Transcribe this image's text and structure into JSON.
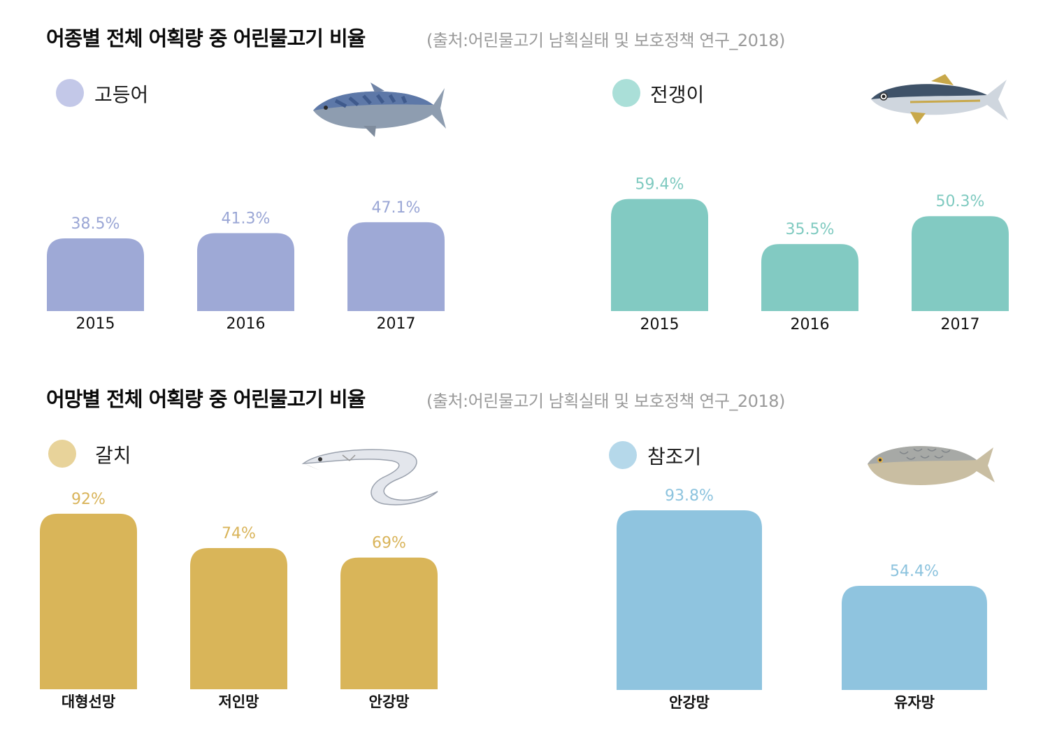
{
  "sections": [
    {
      "title": "어종별 전체 어획량 중 어린물고기 비율",
      "source": "(출처:어린물고기 남획실태 및 보호정책 연구_2018)"
    },
    {
      "title": "어망별 전체 어획량 중 어린물고기 비율",
      "source": "(출처:어린물고기 남획실태 및 보호정책 연구_2018)"
    }
  ],
  "chart_data": [
    {
      "type": "bar",
      "title": "고등어",
      "icon": "mackerel-icon",
      "color": "#9ea9d6",
      "label_color": "#9aa6d5",
      "legend_color": "#c3c8e8",
      "categories": [
        "2015",
        "2016",
        "2017"
      ],
      "values": [
        38.5,
        41.3,
        47.1
      ],
      "value_labels": [
        "38.5%",
        "41.3%",
        "47.1%"
      ],
      "ylim": [
        0,
        100
      ]
    },
    {
      "type": "bar",
      "title": "전갱이",
      "icon": "horse-mackerel-icon",
      "color": "#82cac2",
      "label_color": "#7fcac0",
      "legend_color": "#aadfd8",
      "categories": [
        "2015",
        "2016",
        "2017"
      ],
      "values": [
        59.4,
        35.5,
        50.3
      ],
      "value_labels": [
        "59.4%",
        "35.5%",
        "50.3%"
      ],
      "ylim": [
        0,
        100
      ]
    },
    {
      "type": "bar",
      "title": "갈치",
      "icon": "hairtail-icon",
      "color": "#d9b559",
      "label_color": "#d9b45a",
      "legend_color": "#e8d39a",
      "categories": [
        "대형선망",
        "저인망",
        "안강망"
      ],
      "values": [
        92,
        74,
        69
      ],
      "value_labels": [
        "92%",
        "74%",
        "69%"
      ],
      "ylim": [
        0,
        100
      ]
    },
    {
      "type": "bar",
      "title": "참조기",
      "icon": "yellow-croaker-icon",
      "color": "#8fc4df",
      "label_color": "#8cc3de",
      "legend_color": "#b5d8ea",
      "categories": [
        "안강망",
        "유자망"
      ],
      "values": [
        93.8,
        54.4
      ],
      "value_labels": [
        "93.8%",
        "54.4%"
      ],
      "ylim": [
        0,
        100
      ]
    }
  ]
}
